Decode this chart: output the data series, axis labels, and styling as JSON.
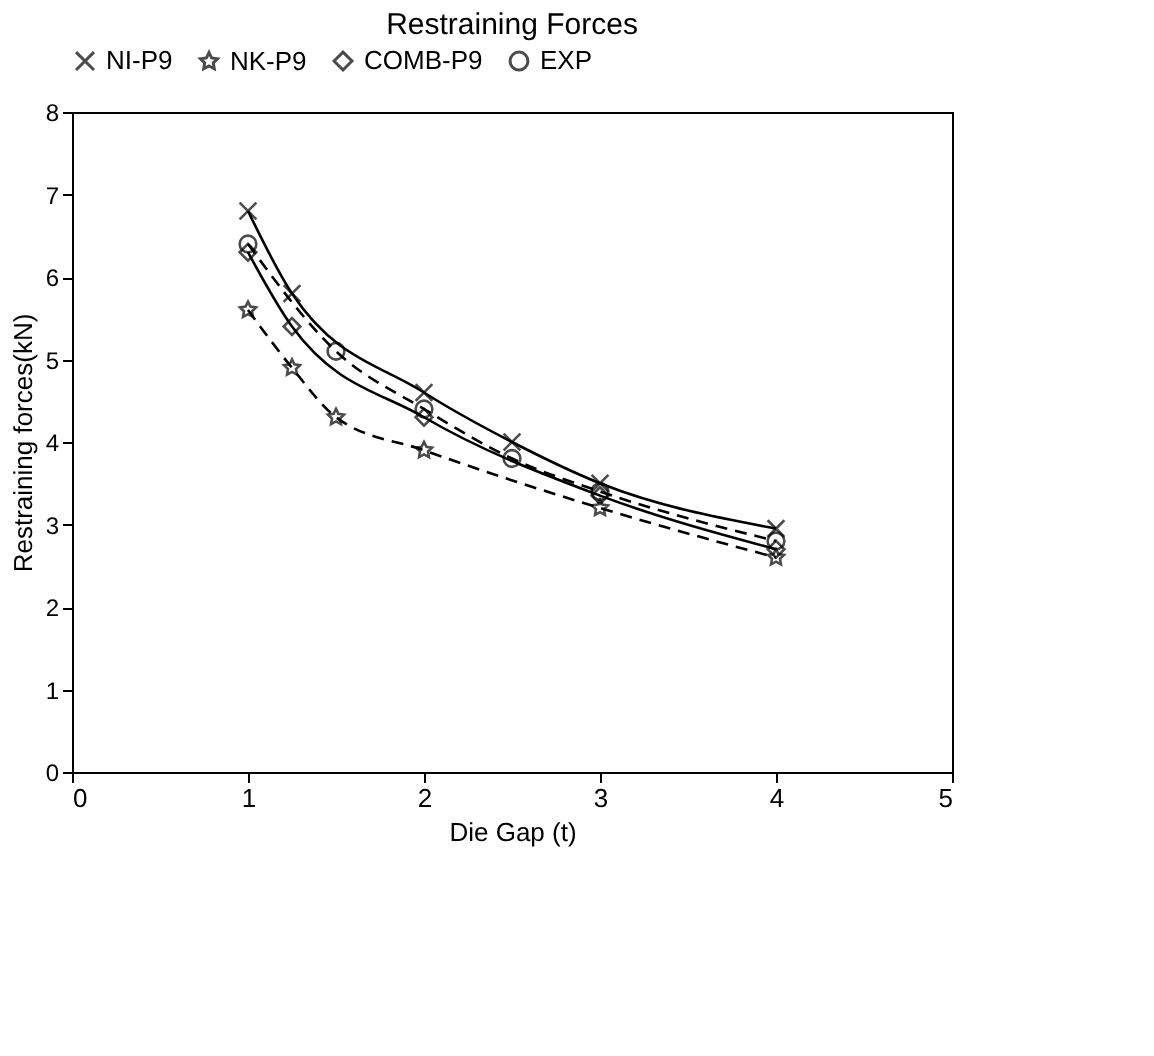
{
  "chart_data": {
    "type": "line",
    "title": "Restraining Forces",
    "xlabel": "Die Gap (t)",
    "ylabel": "Restraining forces(kN)",
    "xlim": [
      0,
      5
    ],
    "xticks": [
      0,
      1,
      2,
      3,
      4,
      5
    ],
    "ylim": [
      0,
      8
    ],
    "yticks": [
      0,
      1,
      2,
      3,
      4,
      5,
      6,
      7,
      8
    ],
    "grid": false,
    "legend": "top",
    "series": [
      {
        "name": "NI-P9",
        "color": "#000000",
        "marker": "cross",
        "line_style": "solid",
        "x": [
          1,
          1.25,
          2,
          2.5,
          3,
          4
        ],
        "values": [
          6.8,
          5.8,
          4.6,
          4.0,
          3.5,
          2.95
        ]
      },
      {
        "name": "NK-P9",
        "color": "#000000",
        "marker": "star",
        "line_style": "dashed",
        "x": [
          1,
          1.25,
          1.5,
          2,
          3,
          4
        ],
        "values": [
          5.6,
          4.9,
          4.3,
          3.9,
          3.2,
          2.6
        ]
      },
      {
        "name": "COMB-P9",
        "color": "#000000",
        "marker": "diamond",
        "line_style": "solid",
        "x": [
          1,
          1.25,
          2,
          3,
          4
        ],
        "values": [
          6.3,
          5.4,
          4.3,
          3.35,
          2.7
        ]
      },
      {
        "name": "EXP",
        "color": "#000000",
        "marker": "circle",
        "line_style": "dashed",
        "x": [
          1,
          1.5,
          2,
          2.5,
          3,
          4
        ],
        "values": [
          6.4,
          5.1,
          4.4,
          3.8,
          3.4,
          2.8
        ]
      }
    ]
  }
}
